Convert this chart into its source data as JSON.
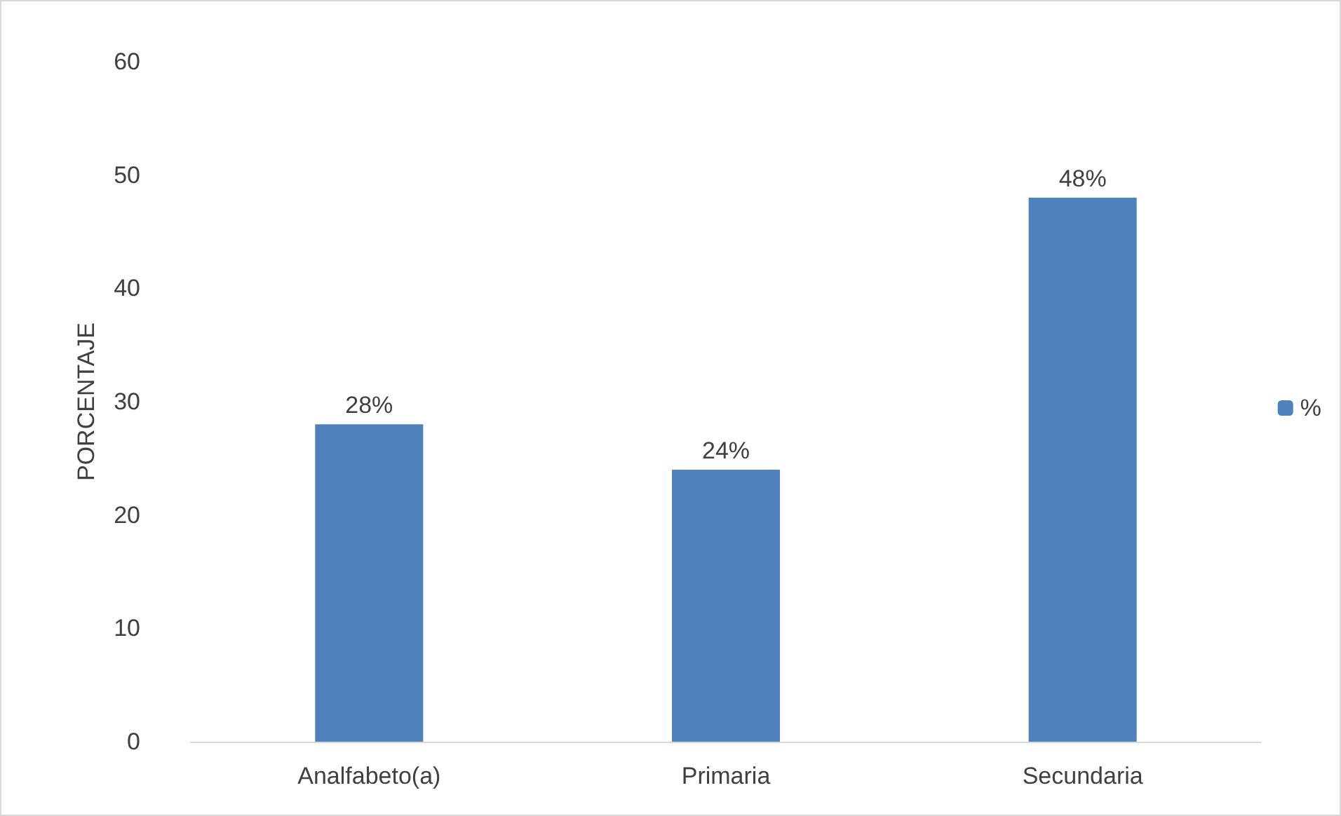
{
  "chart_data": {
    "type": "bar",
    "ylabel": "PORCENTAJE",
    "categories": [
      "Analfabeto(a)",
      "Primaria",
      "Secundaria"
    ],
    "series": [
      {
        "name": "%",
        "color": "#4f81bd",
        "values": [
          28,
          24,
          48
        ],
        "value_labels": [
          "28%",
          "24%",
          "48%"
        ]
      }
    ],
    "ylim": [
      0,
      60
    ],
    "yticks": [
      0,
      10,
      20,
      30,
      40,
      50,
      60
    ],
    "grid": false,
    "legend": "right"
  }
}
